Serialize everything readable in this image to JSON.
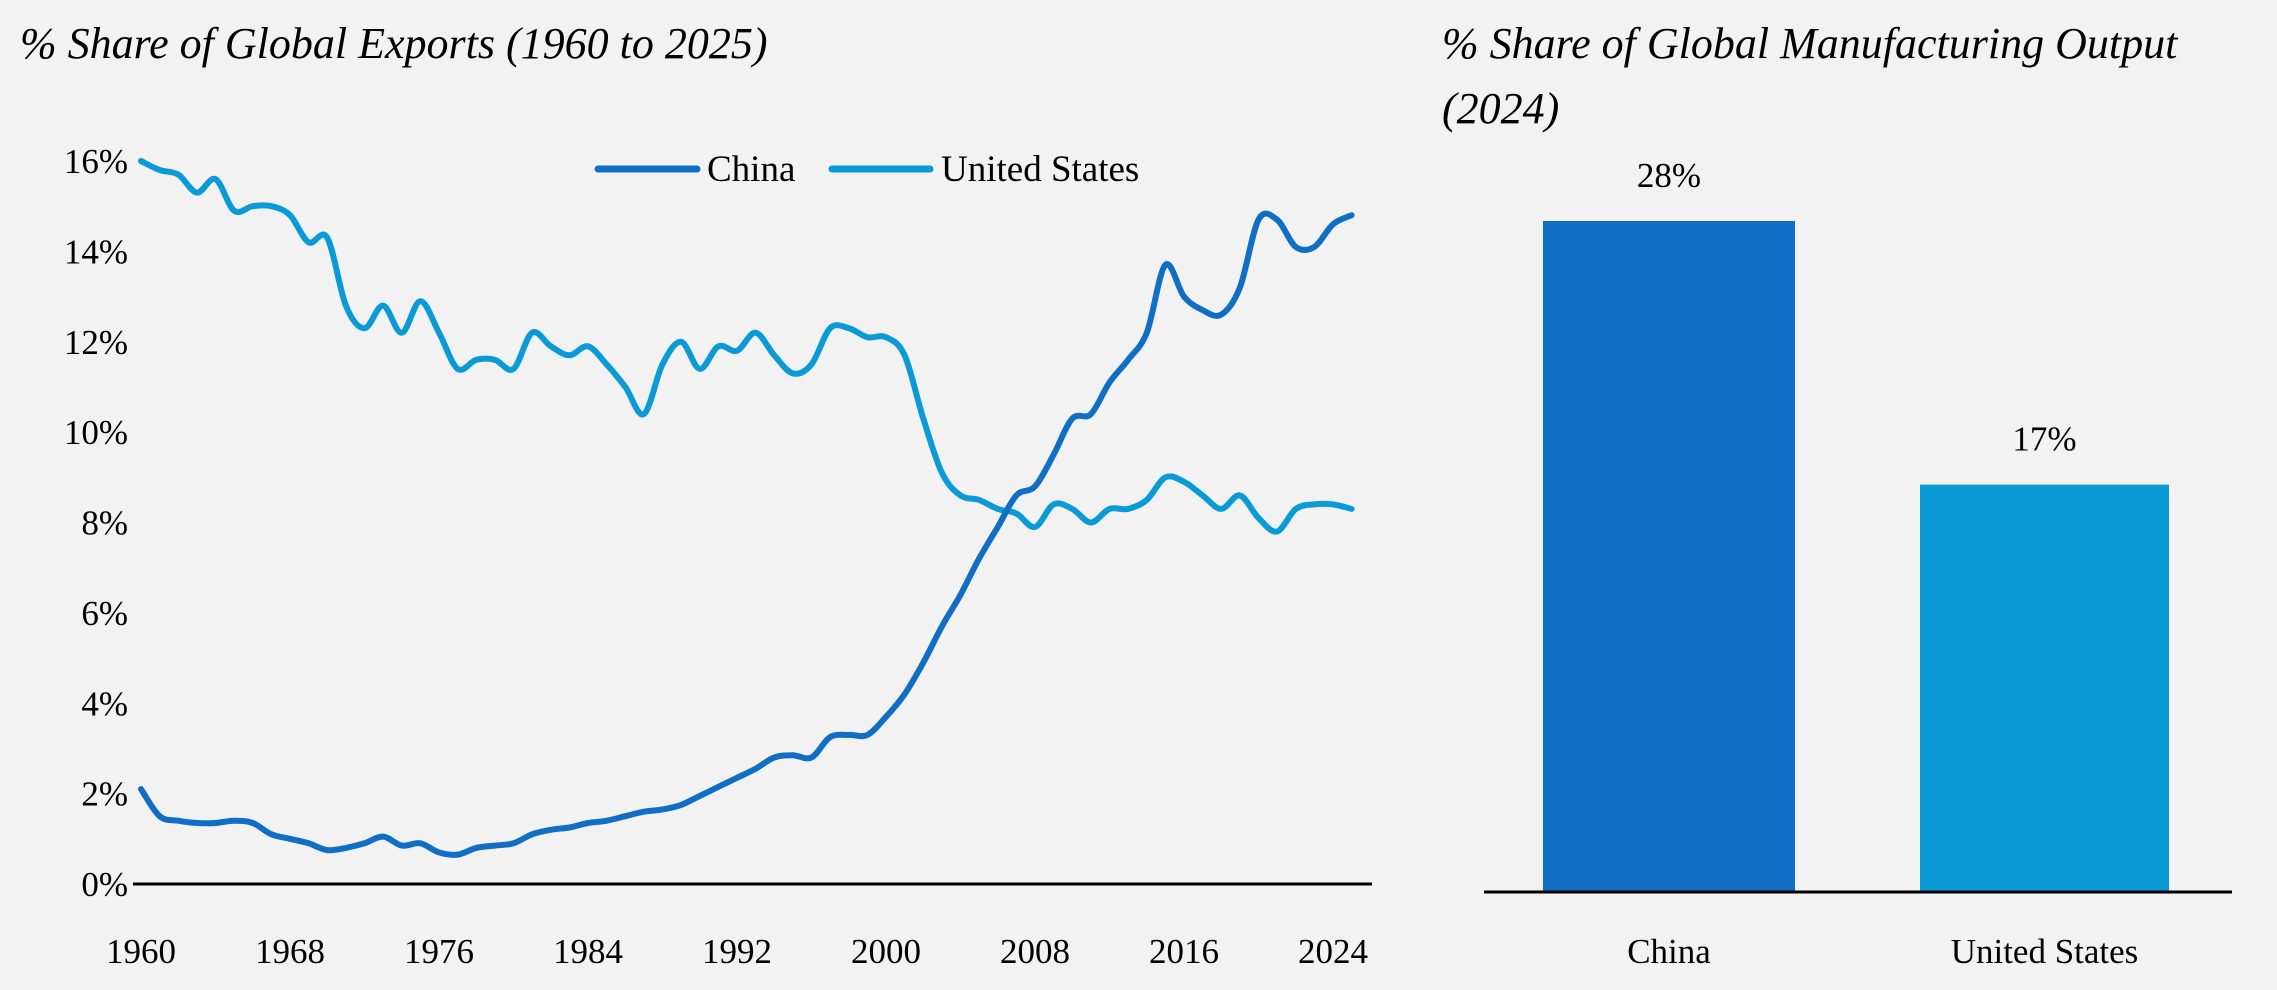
{
  "chart_data": [
    {
      "type": "line",
      "title": "% Share of Global Exports (1960 to 2025)",
      "xlabel": "",
      "ylabel": "",
      "x": [
        1960,
        1961,
        1962,
        1963,
        1964,
        1965,
        1966,
        1967,
        1968,
        1969,
        1970,
        1971,
        1972,
        1973,
        1974,
        1975,
        1976,
        1977,
        1978,
        1979,
        1980,
        1981,
        1982,
        1983,
        1984,
        1985,
        1986,
        1987,
        1988,
        1989,
        1990,
        1991,
        1992,
        1993,
        1994,
        1995,
        1996,
        1997,
        1998,
        1999,
        2000,
        2001,
        2002,
        2003,
        2004,
        2005,
        2006,
        2007,
        2008,
        2009,
        2010,
        2011,
        2012,
        2013,
        2014,
        2015,
        2016,
        2017,
        2018,
        2019,
        2020,
        2021,
        2022,
        2023,
        2024,
        2025
      ],
      "series": [
        {
          "name": "China",
          "color": "#106ec4",
          "values": [
            2.1,
            1.5,
            1.4,
            1.35,
            1.35,
            1.4,
            1.35,
            1.1,
            1.0,
            0.9,
            0.75,
            0.8,
            0.9,
            1.05,
            0.85,
            0.9,
            0.7,
            0.65,
            0.8,
            0.85,
            0.9,
            1.1,
            1.2,
            1.25,
            1.35,
            1.4,
            1.5,
            1.6,
            1.65,
            1.75,
            1.95,
            2.15,
            2.35,
            2.55,
            2.8,
            2.85,
            2.8,
            3.25,
            3.3,
            3.3,
            3.7,
            4.2,
            4.9,
            5.7,
            6.4,
            7.2,
            7.9,
            8.6,
            8.8,
            9.5,
            10.3,
            10.4,
            11.1,
            11.6,
            12.2,
            13.7,
            13.0,
            12.7,
            12.6,
            13.2,
            14.7,
            14.7,
            14.1,
            14.1,
            14.6,
            14.8
          ]
        },
        {
          "name": "United States",
          "color": "#0a9bd6",
          "values": [
            16.0,
            15.8,
            15.7,
            15.3,
            15.6,
            14.9,
            15.0,
            15.0,
            14.8,
            14.2,
            14.3,
            12.8,
            12.3,
            12.8,
            12.2,
            12.9,
            12.2,
            11.4,
            11.6,
            11.6,
            11.4,
            12.2,
            11.9,
            11.7,
            11.9,
            11.5,
            11.0,
            10.4,
            11.5,
            12.0,
            11.4,
            11.9,
            11.8,
            12.2,
            11.7,
            11.3,
            11.5,
            12.3,
            12.3,
            12.1,
            12.1,
            11.7,
            10.3,
            9.1,
            8.6,
            8.5,
            8.3,
            8.2,
            7.9,
            8.4,
            8.3,
            8.0,
            8.3,
            8.3,
            8.5,
            9.0,
            8.9,
            8.6,
            8.3,
            8.6,
            8.1,
            7.8,
            8.3,
            8.4,
            8.4,
            8.3
          ]
        }
      ],
      "ylim": [
        0,
        16
      ],
      "yticks": [
        0,
        2,
        4,
        6,
        8,
        10,
        12,
        14,
        16
      ],
      "ytick_labels": [
        "0%",
        "2%",
        "4%",
        "6%",
        "8%",
        "10%",
        "12%",
        "14%",
        "16%"
      ],
      "xticks": [
        1960,
        1968,
        1976,
        1984,
        1992,
        2000,
        2008,
        2016,
        2024
      ],
      "xtick_labels": [
        "1960",
        "1968",
        "1976",
        "1984",
        "1992",
        "2000",
        "2008",
        "2016",
        "2024"
      ],
      "legend": {
        "position": "top-center",
        "entries": [
          "China",
          "United States"
        ]
      },
      "grid": false
    },
    {
      "type": "bar",
      "title": "% Share of Global Manufacturing Output",
      "title_line2": "(2024)",
      "categories": [
        "China",
        "United States"
      ],
      "values": [
        28,
        17
      ],
      "data_labels": [
        "28%",
        "17%"
      ],
      "colors": [
        "#106ec4",
        "#0a9bd6"
      ],
      "ylim": [
        0,
        28
      ],
      "grid": false
    }
  ],
  "background": "#f2f2f2"
}
